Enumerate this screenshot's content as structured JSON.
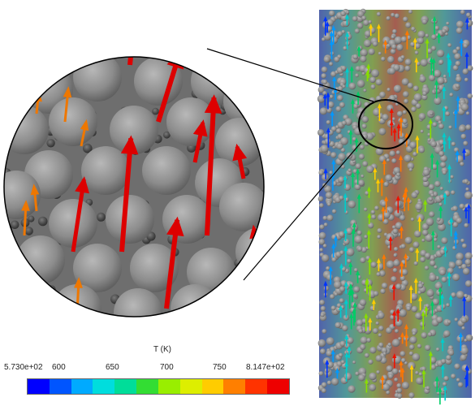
{
  "colorbar": {
    "title": "T (K)",
    "min_label": "5.730e+02",
    "max_label": "8.147e+02",
    "ticks": [
      "600",
      "650",
      "700",
      "750"
    ],
    "colors": [
      "#0000ff",
      "#0055ff",
      "#00aaff",
      "#00dddd",
      "#00dd99",
      "#33dd33",
      "#99ee00",
      "#ddee00",
      "#ffcc00",
      "#ff7f00",
      "#ff3300",
      "#ee0000"
    ]
  },
  "scene": {
    "sphere_color": "#8c8c8c",
    "small_particle_color": "#444444",
    "arrow_hot_color": "#dd0000",
    "arrow_warm_color": "#ee7700"
  }
}
